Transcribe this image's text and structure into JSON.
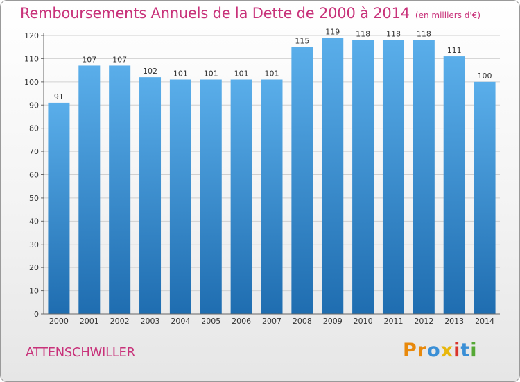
{
  "header": {
    "title": "Remboursements Annuels de la Dette de 2000 à 2014",
    "subtitle": "(en milliers d'€)"
  },
  "footer": {
    "commune": "ATTENSCHWILLER",
    "logo_letters": [
      "P",
      "r",
      "o",
      "x",
      "i",
      "t",
      "i"
    ]
  },
  "colors": {
    "title": "#c8327a",
    "bar_light": "#5aaeea",
    "bar_dark": "#1f6db0",
    "grid": "#d0d0d0",
    "logo": [
      "#e8890c",
      "#e8890c",
      "#3a8fd6",
      "#e8b70c",
      "#d9342b",
      "#3a8fd6",
      "#55a835"
    ]
  },
  "chart_data": {
    "type": "bar",
    "title": "Remboursements Annuels de la Dette de 2000 à 2014",
    "subtitle": "(en milliers d'€)",
    "categories": [
      "2000",
      "2001",
      "2002",
      "2003",
      "2004",
      "2005",
      "2006",
      "2007",
      "2008",
      "2009",
      "2010",
      "2011",
      "2012",
      "2013",
      "2014"
    ],
    "values": [
      91,
      107,
      107,
      102,
      101,
      101,
      101,
      101,
      115,
      119,
      118,
      118,
      118,
      111,
      100
    ],
    "xlabel": "",
    "ylabel": "",
    "ylim": [
      0,
      120
    ],
    "yticks": [
      0,
      10,
      20,
      30,
      40,
      50,
      60,
      70,
      80,
      90,
      100,
      110,
      120
    ],
    "grid": true,
    "data_labels": true
  }
}
